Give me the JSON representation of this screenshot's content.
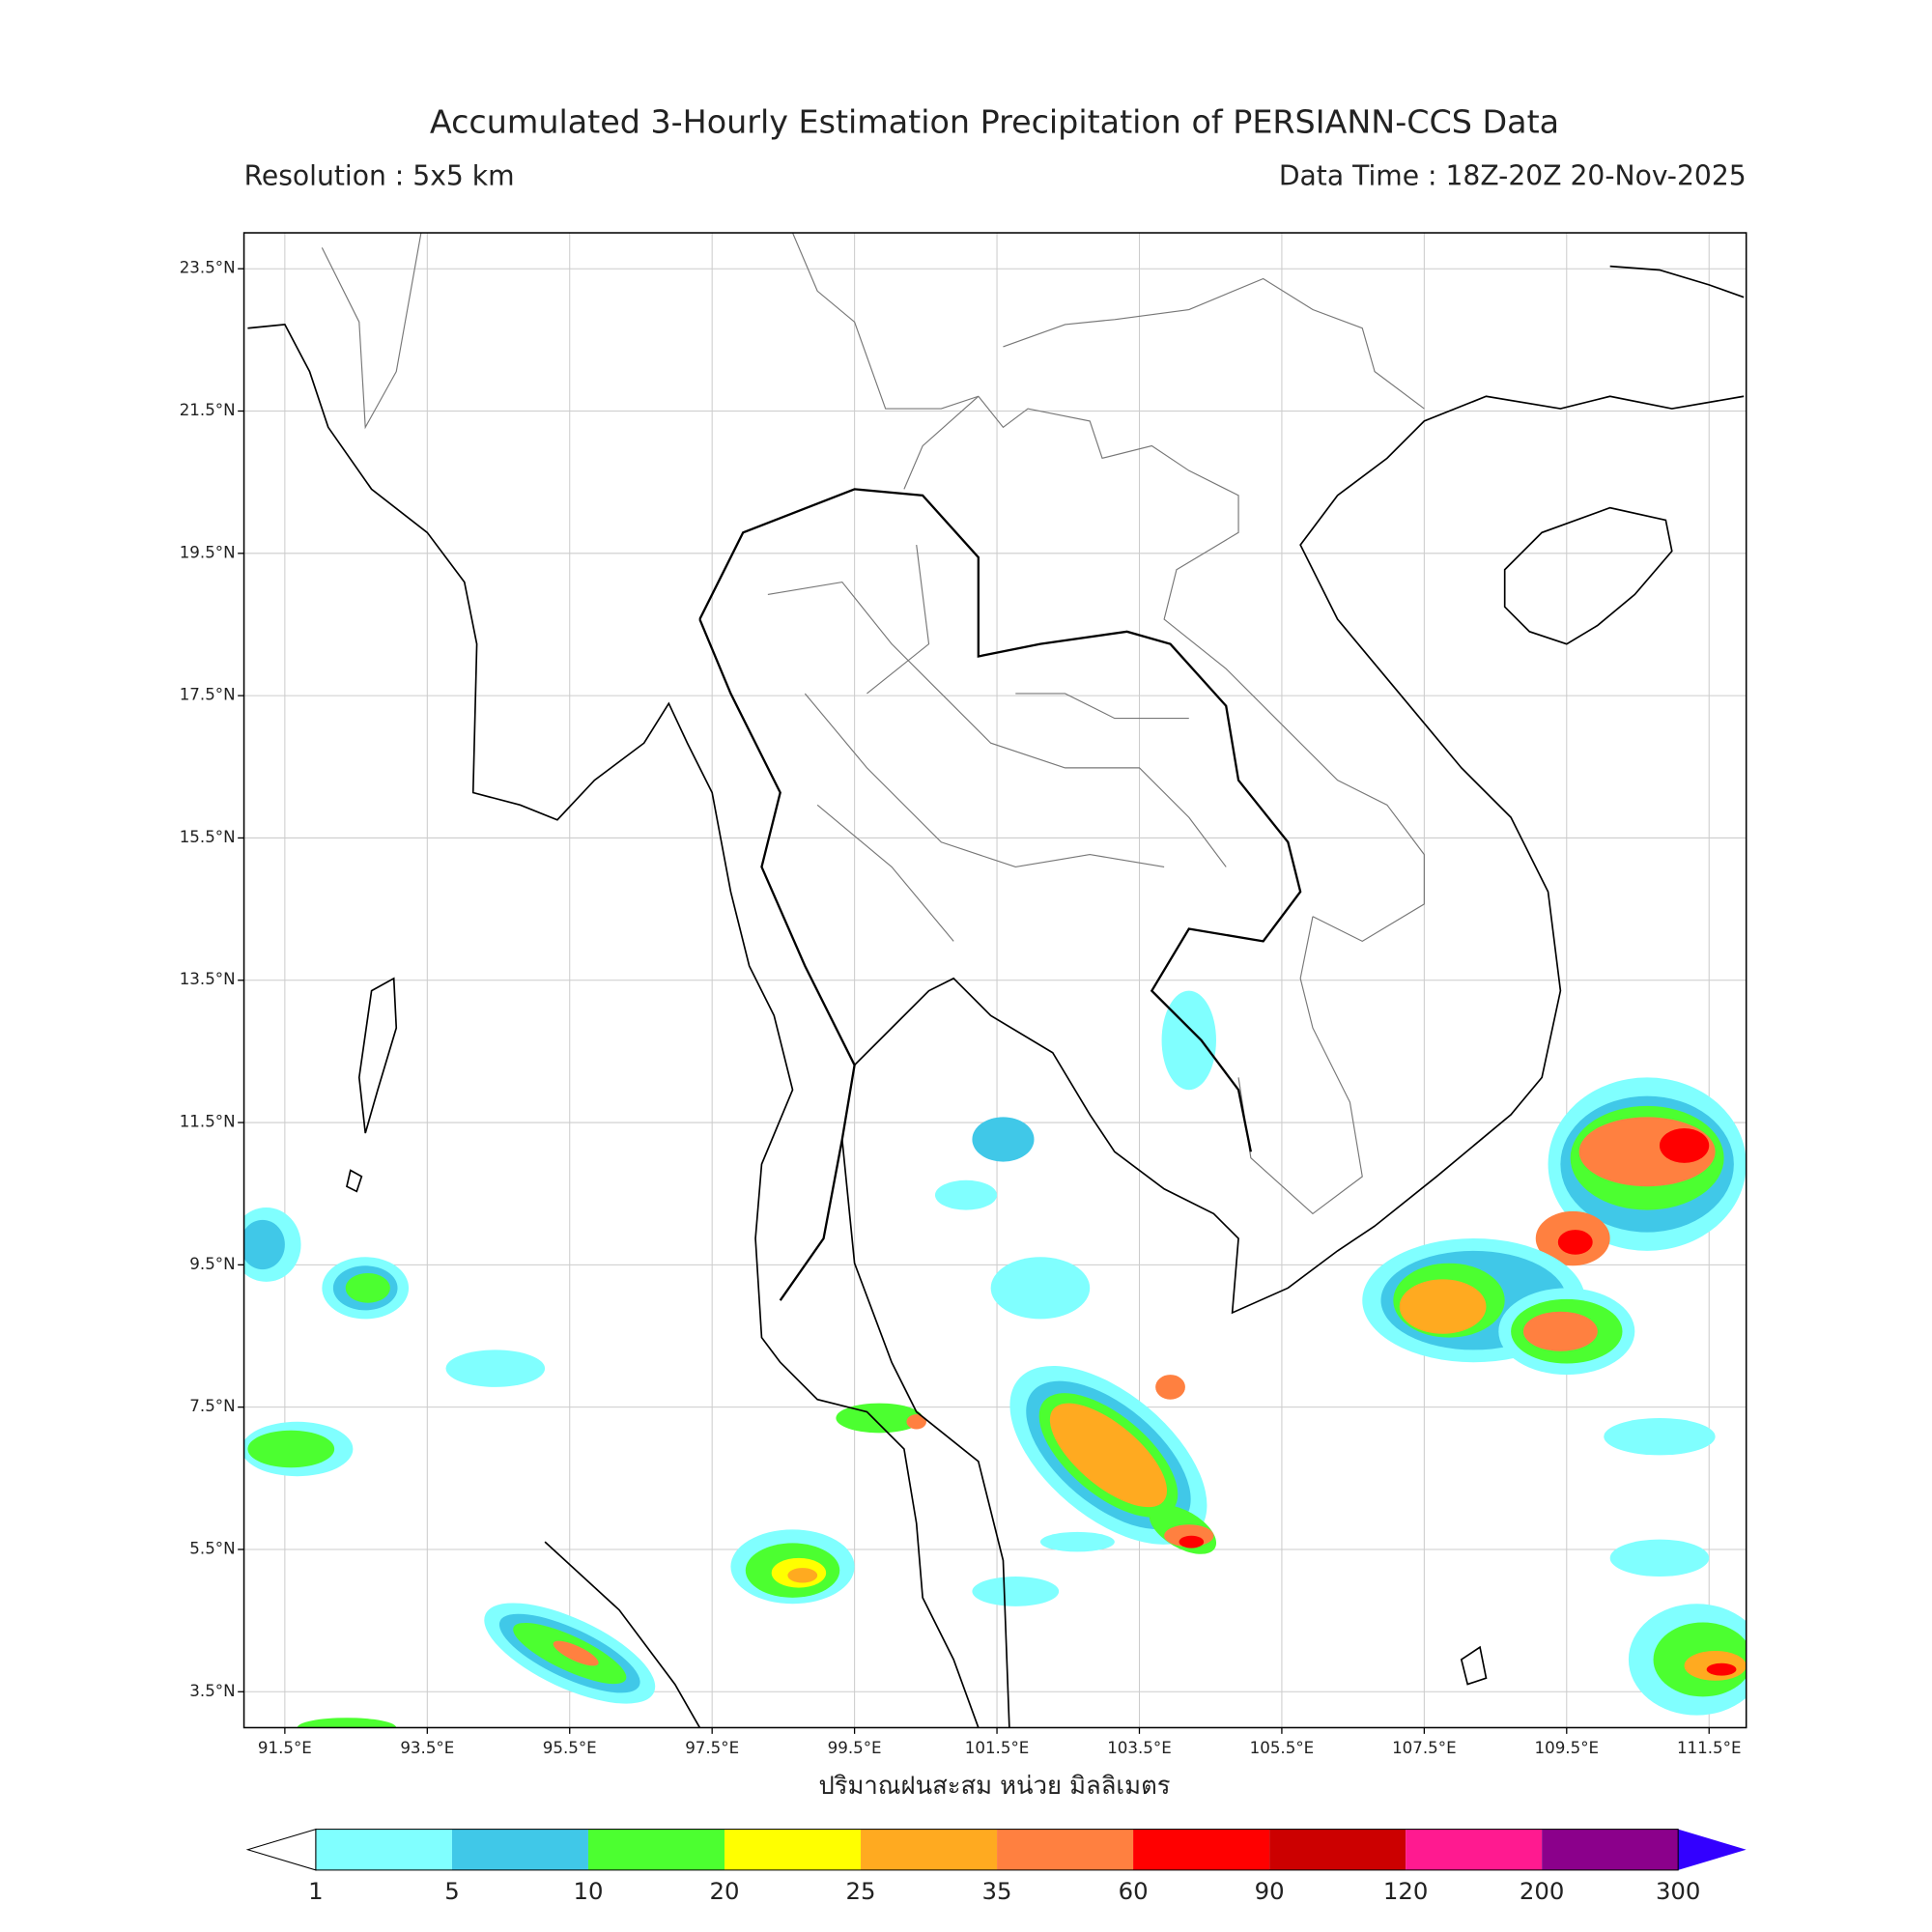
{
  "header": {
    "title": "Accumulated 3-Hourly Estimation Precipitation of PERSIANN-CCS Data",
    "resolution": "Resolution : 5x5 km",
    "data_time": "Data Time : 18Z-20Z 20-Nov-2025"
  },
  "map": {
    "lat_ticks": [
      {
        "value": 23.5,
        "label": "23.5°N"
      },
      {
        "value": 21.5,
        "label": "21.5°N"
      },
      {
        "value": 19.5,
        "label": "19.5°N"
      },
      {
        "value": 17.5,
        "label": "17.5°N"
      },
      {
        "value": 15.5,
        "label": "15.5°N"
      },
      {
        "value": 13.5,
        "label": "13.5°N"
      },
      {
        "value": 11.5,
        "label": "11.5°N"
      },
      {
        "value": 9.5,
        "label": "9.5°N"
      },
      {
        "value": 7.5,
        "label": "7.5°N"
      },
      {
        "value": 5.5,
        "label": "5.5°N"
      },
      {
        "value": 3.5,
        "label": "3.5°N"
      }
    ],
    "lon_ticks": [
      {
        "value": 91.5,
        "label": "91.5°E"
      },
      {
        "value": 93.5,
        "label": "93.5°E"
      },
      {
        "value": 95.5,
        "label": "95.5°E"
      },
      {
        "value": 97.5,
        "label": "97.5°E"
      },
      {
        "value": 99.5,
        "label": "99.5°E"
      },
      {
        "value": 101.5,
        "label": "101.5°E"
      },
      {
        "value": 103.5,
        "label": "103.5°E"
      },
      {
        "value": 105.5,
        "label": "105.5°E"
      },
      {
        "value": 107.5,
        "label": "107.5°E"
      },
      {
        "value": 109.5,
        "label": "109.5°E"
      },
      {
        "value": 111.5,
        "label": "111.5°E"
      }
    ],
    "xlabel": "ปริมาณฝนสะสม หน่วย มิลลิเมตร"
  },
  "colorbar": {
    "levels": [
      1,
      5,
      10,
      20,
      25,
      35,
      60,
      90,
      120,
      200,
      300
    ],
    "colors": [
      "#80ffff",
      "#40c8e8",
      "#4cff30",
      "#ffff00",
      "#ffaa20",
      "#ff8040",
      "#ff0000",
      "#cc0000",
      "#ff1a90",
      "#8b008b",
      "#3300ff"
    ],
    "under_color": "#ffffff"
  }
}
